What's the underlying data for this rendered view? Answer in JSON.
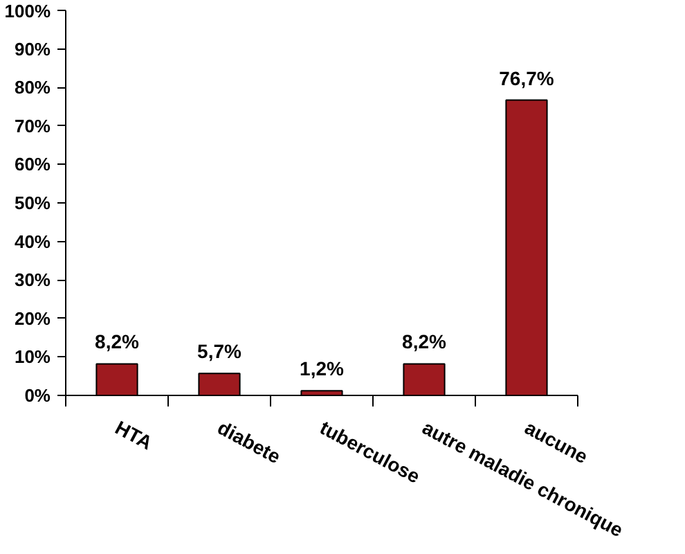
{
  "chart_data": {
    "type": "bar",
    "categories": [
      "HTA",
      "diabete",
      "tuberculose",
      "autre maladie chronique",
      "aucune"
    ],
    "values": [
      8.2,
      5.7,
      1.2,
      8.2,
      76.7
    ],
    "value_labels": [
      "8,2%",
      "5,7%",
      "1,2%",
      "8,2%",
      "76,7%"
    ],
    "color": "#9e1a1f",
    "ylim": [
      0,
      100
    ],
    "yticks": [
      {
        "value": 0,
        "label": "0%"
      },
      {
        "value": 10,
        "label": "10%"
      },
      {
        "value": 20,
        "label": "20%"
      },
      {
        "value": 30,
        "label": "30%"
      },
      {
        "value": 40,
        "label": "40%"
      },
      {
        "value": 50,
        "label": "50%"
      },
      {
        "value": 60,
        "label": "60%"
      },
      {
        "value": 70,
        "label": "70%"
      },
      {
        "value": 80,
        "label": "80%"
      },
      {
        "value": 90,
        "label": "90%"
      },
      {
        "value": 100,
        "label": "100%"
      }
    ],
    "grid": false
  }
}
